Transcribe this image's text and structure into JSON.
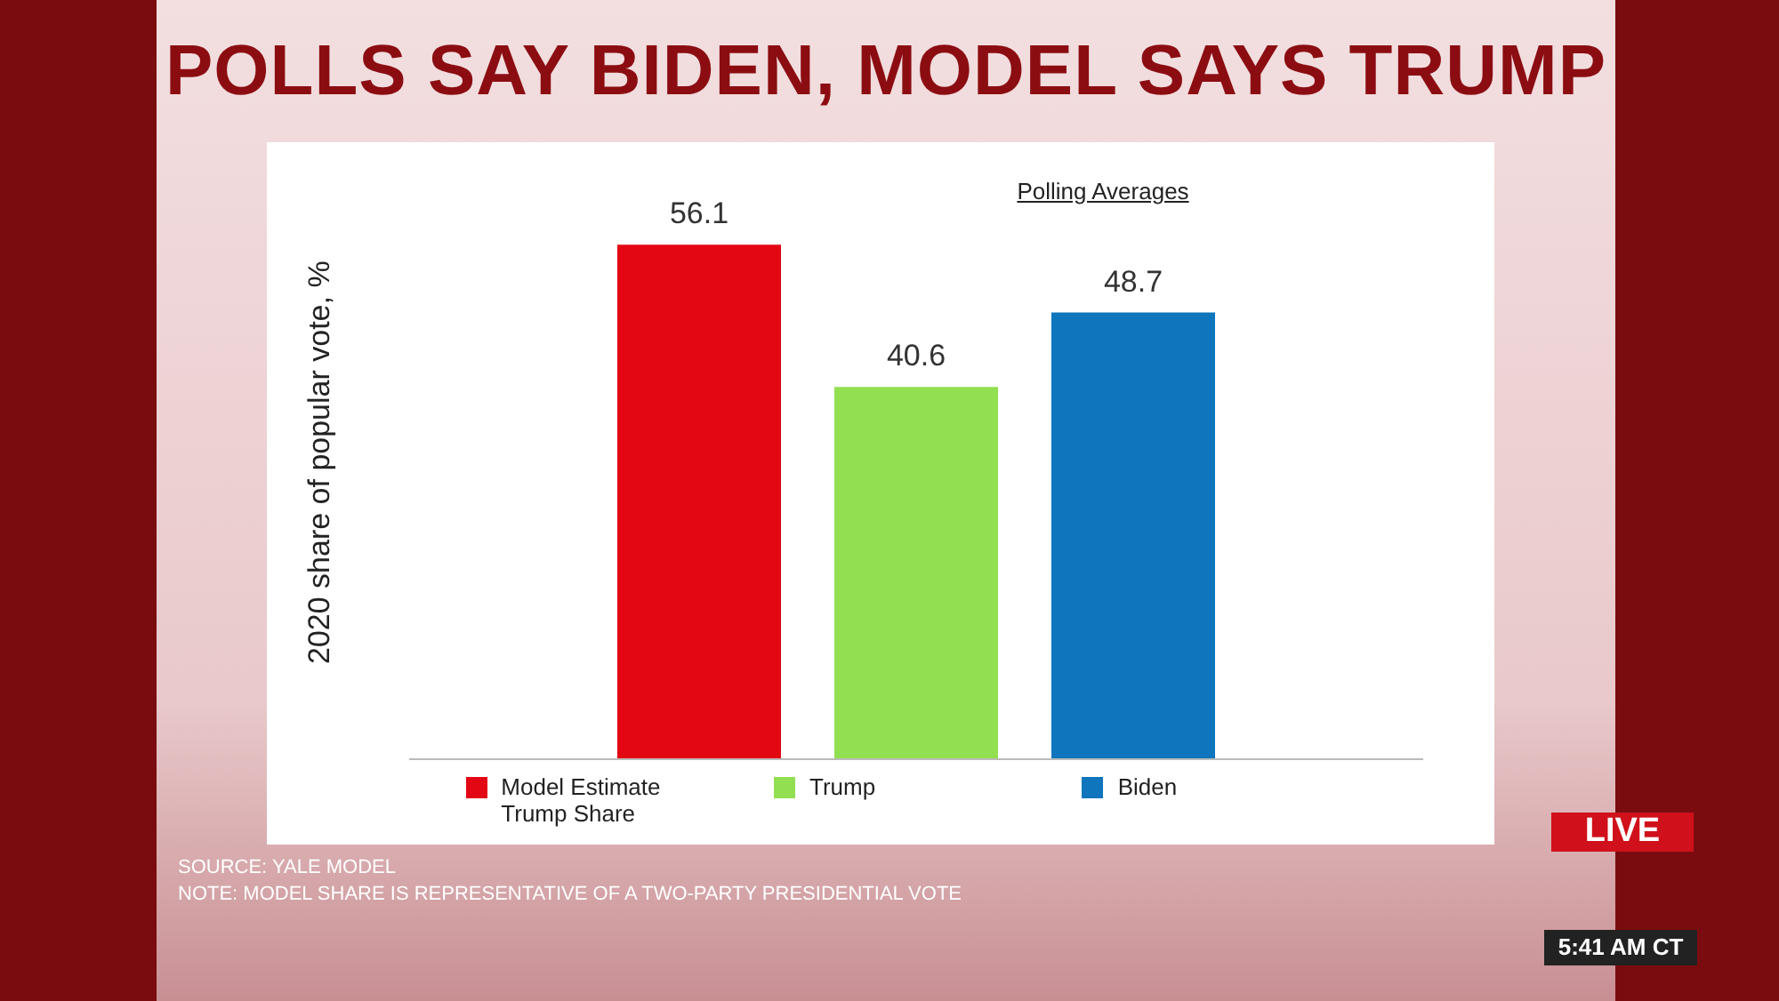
{
  "chart_data": {
    "type": "bar",
    "title": "POLLS SAY BIDEN, MODEL SAYS TRUMP",
    "ylabel": "2020 share of popular vote, %",
    "categories": [
      null
    ],
    "series": [
      {
        "name": "Model Estimate Trump Share",
        "color": "#e30613",
        "values": [
          56.1
        ]
      },
      {
        "name": "Trump",
        "color": "#92e052",
        "values": [
          40.6
        ]
      },
      {
        "name": "Biden",
        "color": "#0f75bc",
        "values": [
          48.7
        ]
      }
    ],
    "data_labels": true,
    "legend": "bottom",
    "grid": false,
    "annotations": [
      "Polling Averages",
      "SOURCE: YALE MODEL",
      "NOTE: MODEL SHARE IS REPRESENTATIVE OF A TWO-PARTY PRESIDENTIAL VOTE",
      "LIVE",
      "5:41 AM CT"
    ]
  }
}
